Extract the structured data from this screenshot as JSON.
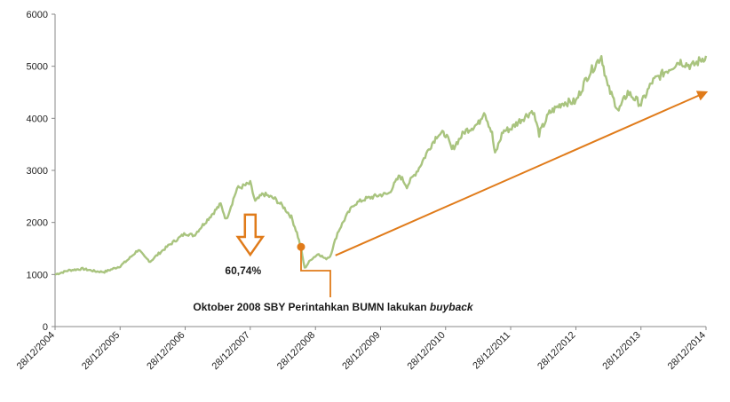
{
  "chart_data": {
    "type": "line",
    "title": "",
    "xlabel": "",
    "ylabel": "",
    "ylim": [
      0,
      6000
    ],
    "yticks": [
      0,
      1000,
      2000,
      3000,
      4000,
      5000,
      6000
    ],
    "xticks": [
      "28/12/2004",
      "28/12/2005",
      "28/12/2006",
      "28/12/2007",
      "28/12/2008",
      "28/12/2009",
      "28/12/2010",
      "28/12/2011",
      "28/12/2012",
      "28/12/2013",
      "28/12/2014"
    ],
    "grid": false,
    "legend": "none",
    "series": [
      {
        "color": "#a9c47f",
        "points": [
          [
            "2004-12-28",
            1000
          ],
          [
            "2005-03-15",
            1080
          ],
          [
            "2005-06-01",
            1110
          ],
          [
            "2005-08-15",
            1060
          ],
          [
            "2005-10-01",
            1050
          ],
          [
            "2005-12-28",
            1160
          ],
          [
            "2006-02-15",
            1300
          ],
          [
            "2006-04-10",
            1480
          ],
          [
            "2006-05-15",
            1330
          ],
          [
            "2006-06-15",
            1250
          ],
          [
            "2006-08-01",
            1400
          ],
          [
            "2006-10-01",
            1570
          ],
          [
            "2006-12-28",
            1790
          ],
          [
            "2007-02-15",
            1750
          ],
          [
            "2007-05-01",
            2050
          ],
          [
            "2007-07-15",
            2350
          ],
          [
            "2007-08-15",
            2050
          ],
          [
            "2007-10-15",
            2650
          ],
          [
            "2007-12-28",
            2750
          ],
          [
            "2008-01-25",
            2400
          ],
          [
            "2008-03-10",
            2550
          ],
          [
            "2008-05-15",
            2450
          ],
          [
            "2008-07-01",
            2300
          ],
          [
            "2008-08-15",
            2100
          ],
          [
            "2008-09-15",
            1800
          ],
          [
            "2008-10-08",
            1500
          ],
          [
            "2008-10-28",
            1120
          ],
          [
            "2008-12-05",
            1300
          ],
          [
            "2009-01-15",
            1400
          ],
          [
            "2009-02-20",
            1300
          ],
          [
            "2009-03-20",
            1350
          ],
          [
            "2009-05-01",
            1800
          ],
          [
            "2009-06-15",
            2100
          ],
          [
            "2009-08-01",
            2350
          ],
          [
            "2009-10-01",
            2450
          ],
          [
            "2009-12-28",
            2530
          ],
          [
            "2010-02-10",
            2550
          ],
          [
            "2010-04-15",
            2900
          ],
          [
            "2010-05-25",
            2700
          ],
          [
            "2010-08-01",
            3050
          ],
          [
            "2010-10-01",
            3450
          ],
          [
            "2010-11-15",
            3700
          ],
          [
            "2010-12-28",
            3700
          ],
          [
            "2011-02-01",
            3400
          ],
          [
            "2011-04-15",
            3750
          ],
          [
            "2011-07-01",
            3900
          ],
          [
            "2011-08-01",
            4150
          ],
          [
            "2011-09-15",
            3700
          ],
          [
            "2011-10-01",
            3300
          ],
          [
            "2011-11-15",
            3750
          ],
          [
            "2011-12-28",
            3800
          ],
          [
            "2012-02-15",
            3950
          ],
          [
            "2012-05-01",
            4150
          ],
          [
            "2012-06-05",
            3700
          ],
          [
            "2012-08-01",
            4100
          ],
          [
            "2012-10-15",
            4300
          ],
          [
            "2012-12-28",
            4320
          ],
          [
            "2013-03-01",
            4800
          ],
          [
            "2013-05-20",
            5200
          ],
          [
            "2013-06-25",
            4600
          ],
          [
            "2013-08-25",
            4150
          ],
          [
            "2013-10-15",
            4500
          ],
          [
            "2013-12-28",
            4270
          ],
          [
            "2014-03-01",
            4700
          ],
          [
            "2014-05-15",
            4900
          ],
          [
            "2014-08-01",
            5100
          ],
          [
            "2014-10-10",
            5000
          ],
          [
            "2014-12-28",
            5200
          ]
        ]
      }
    ],
    "annotations": {
      "drop_label": "60,74%",
      "buyback_text": "Oktober 2008  SBY Perintahkan BUMN lakukan ",
      "buyback_italic": "buyback",
      "marker": {
        "date": "2008-10-08",
        "value": 1530,
        "color": "#e07b1a"
      },
      "drop_arrow": {
        "from_date": "2007-12-28",
        "from_value": 2150,
        "to_value": 1380,
        "color": "#e07b1a"
      },
      "trend_arrow": {
        "from_date": "2009-03-20",
        "from_value": 1350,
        "to_date": "2014-12-28",
        "to_value": 4500,
        "color": "#e07b1a"
      }
    },
    "colors": {
      "axis": "#888888",
      "accent": "#e07b1a",
      "line": "#a9c47f"
    }
  }
}
